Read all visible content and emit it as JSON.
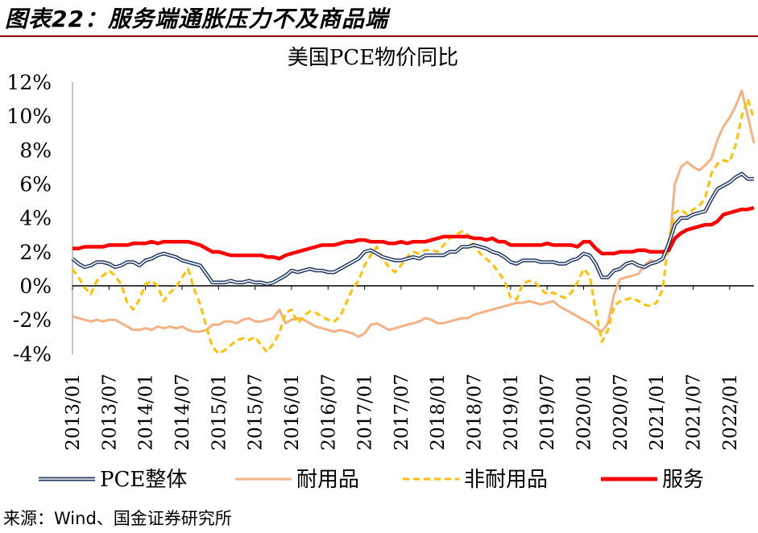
{
  "figure_title": "图表22：服务端通胀压力不及商品端",
  "source_note": "来源：Wind、国金证券研究所",
  "chart_data": {
    "type": "line",
    "title": "美国PCE物价同比",
    "xlabel": "",
    "ylabel": "",
    "ylim": [
      -4,
      12
    ],
    "yticks": [
      "12%",
      "10%",
      "8%",
      "6%",
      "4%",
      "2%",
      "0%",
      "-2%",
      "-4%"
    ],
    "ytick_values": [
      12,
      10,
      8,
      6,
      4,
      2,
      0,
      -2,
      -4
    ],
    "xtick_labels": [
      "2013/01",
      "2013/07",
      "2014/01",
      "2014/07",
      "2015/01",
      "2015/07",
      "2016/01",
      "2016/07",
      "2017/01",
      "2017/07",
      "2018/01",
      "2018/07",
      "2019/01",
      "2019/07",
      "2020/01",
      "2020/07",
      "2021/01",
      "2021/07",
      "2022/01"
    ],
    "start": "2013/01",
    "n_months": 113,
    "legend_position": "bottom",
    "series": [
      {
        "name": "PCE整体",
        "style": "double",
        "color": "#1f3864",
        "values": [
          1.6,
          1.3,
          1.1,
          1.2,
          1.4,
          1.4,
          1.3,
          1.1,
          1.2,
          1.4,
          1.4,
          1.2,
          1.5,
          1.6,
          1.8,
          1.9,
          1.8,
          1.7,
          1.5,
          1.4,
          1.3,
          1.2,
          0.7,
          0.2,
          0.2,
          0.2,
          0.3,
          0.2,
          0.2,
          0.3,
          0.2,
          0.2,
          0.1,
          0.2,
          0.4,
          0.6,
          0.9,
          0.8,
          0.9,
          1.0,
          0.9,
          0.9,
          0.8,
          0.8,
          1.0,
          1.2,
          1.4,
          1.6,
          2.0,
          2.1,
          1.9,
          1.7,
          1.6,
          1.5,
          1.5,
          1.6,
          1.7,
          1.6,
          1.8,
          1.8,
          1.8,
          1.8,
          2.0,
          2.0,
          2.3,
          2.3,
          2.4,
          2.3,
          2.2,
          2.0,
          1.9,
          1.7,
          1.4,
          1.3,
          1.5,
          1.5,
          1.5,
          1.4,
          1.4,
          1.4,
          1.3,
          1.3,
          1.5,
          1.6,
          1.9,
          1.8,
          1.3,
          0.5,
          0.5,
          0.9,
          1.0,
          1.3,
          1.4,
          1.2,
          1.1,
          1.3,
          1.4,
          1.6,
          2.5,
          3.6,
          4.0,
          4.0,
          4.2,
          4.3,
          4.4,
          5.1,
          5.7,
          5.9,
          6.1,
          6.4,
          6.6,
          6.3,
          6.3
        ]
      },
      {
        "name": "耐用品",
        "style": "solid",
        "color": "#f4b183",
        "values": [
          -1.8,
          -1.9,
          -2.0,
          -2.1,
          -2.0,
          -2.1,
          -2.0,
          -2.0,
          -2.2,
          -2.4,
          -2.6,
          -2.6,
          -2.5,
          -2.6,
          -2.4,
          -2.5,
          -2.4,
          -2.5,
          -2.4,
          -2.6,
          -2.7,
          -2.7,
          -2.6,
          -2.3,
          -2.3,
          -2.1,
          -2.1,
          -2.2,
          -2.0,
          -1.9,
          -2.1,
          -2.1,
          -2.0,
          -1.9,
          -1.4,
          -2.2,
          -2.0,
          -1.9,
          -2.0,
          -2.2,
          -2.4,
          -2.5,
          -2.6,
          -2.7,
          -2.6,
          -2.7,
          -2.8,
          -3.0,
          -2.8,
          -2.3,
          -2.2,
          -2.4,
          -2.6,
          -2.5,
          -2.4,
          -2.3,
          -2.2,
          -2.1,
          -1.9,
          -2.0,
          -2.2,
          -2.2,
          -2.1,
          -2.0,
          -1.9,
          -1.9,
          -1.7,
          -1.6,
          -1.5,
          -1.4,
          -1.3,
          -1.2,
          -1.1,
          -1.0,
          -1.0,
          -0.9,
          -1.0,
          -1.1,
          -1.0,
          -0.9,
          -1.2,
          -1.4,
          -1.6,
          -1.8,
          -2.0,
          -2.2,
          -2.5,
          -2.7,
          -2.2,
          -0.5,
          0.4,
          0.5,
          0.6,
          0.7,
          1.2,
          1.5,
          1.4,
          1.6,
          2.0,
          6.0,
          7.0,
          7.3,
          7.0,
          6.8,
          7.1,
          7.5,
          8.6,
          9.4,
          9.9,
          10.6,
          11.5,
          10.0,
          8.4
        ]
      },
      {
        "name": "非耐用品",
        "style": "dashed",
        "color": "#ffc000",
        "values": [
          1.0,
          0.5,
          -0.1,
          -0.5,
          0.3,
          0.6,
          0.9,
          0.6,
          0.1,
          -1.0,
          -1.4,
          -0.8,
          0.1,
          0.3,
          0.0,
          -0.9,
          -0.4,
          -0.1,
          0.5,
          1.0,
          -0.2,
          -1.1,
          -2.4,
          -3.6,
          -4.0,
          -3.8,
          -3.5,
          -3.2,
          -3.1,
          -3.2,
          -3.0,
          -3.5,
          -3.9,
          -3.4,
          -2.8,
          -1.6,
          -1.4,
          -2.2,
          -1.8,
          -1.5,
          -1.6,
          -1.8,
          -2.0,
          -2.1,
          -1.8,
          -1.0,
          -0.2,
          0.3,
          1.2,
          1.8,
          2.3,
          1.6,
          1.1,
          0.8,
          1.2,
          1.7,
          2.0,
          1.9,
          2.1,
          2.1,
          2.0,
          2.4,
          2.8,
          3.0,
          3.2,
          3.0,
          2.3,
          1.9,
          1.6,
          1.3,
          0.8,
          0.3,
          -0.7,
          -0.8,
          0.1,
          0.3,
          0.2,
          -0.2,
          -0.5,
          -0.4,
          -0.6,
          -0.7,
          -0.4,
          0.2,
          1.0,
          0.6,
          -1.5,
          -3.3,
          -2.6,
          -1.2,
          -0.9,
          -0.8,
          -0.7,
          -0.9,
          -1.1,
          -1.2,
          -1.0,
          -0.2,
          2.8,
          4.3,
          4.5,
          4.2,
          4.5,
          4.7,
          5.2,
          6.6,
          7.2,
          7.4,
          7.3,
          8.3,
          10.0,
          11.0,
          9.8
        ]
      },
      {
        "name": "服务",
        "style": "solid",
        "color": "#ff0000",
        "values": [
          2.2,
          2.2,
          2.3,
          2.3,
          2.3,
          2.3,
          2.4,
          2.4,
          2.4,
          2.4,
          2.5,
          2.5,
          2.5,
          2.6,
          2.5,
          2.6,
          2.6,
          2.6,
          2.6,
          2.6,
          2.5,
          2.4,
          2.2,
          2.0,
          2.0,
          1.9,
          1.8,
          1.8,
          1.8,
          1.8,
          1.8,
          1.8,
          1.7,
          1.7,
          1.6,
          1.8,
          1.9,
          2.0,
          2.1,
          2.2,
          2.3,
          2.4,
          2.4,
          2.4,
          2.5,
          2.6,
          2.6,
          2.7,
          2.7,
          2.6,
          2.6,
          2.6,
          2.5,
          2.5,
          2.6,
          2.5,
          2.6,
          2.6,
          2.6,
          2.7,
          2.8,
          2.9,
          2.9,
          2.9,
          2.9,
          2.9,
          2.8,
          2.8,
          2.7,
          2.8,
          2.6,
          2.6,
          2.4,
          2.4,
          2.4,
          2.4,
          2.4,
          2.4,
          2.5,
          2.4,
          2.4,
          2.4,
          2.4,
          2.3,
          2.6,
          2.6,
          2.2,
          1.9,
          1.9,
          1.9,
          2.0,
          2.0,
          2.0,
          2.1,
          2.1,
          2.0,
          2.0,
          2.0,
          2.1,
          2.8,
          3.1,
          3.3,
          3.4,
          3.5,
          3.6,
          3.6,
          3.8,
          4.2,
          4.3,
          4.4,
          4.5,
          4.5,
          4.6
        ]
      }
    ]
  }
}
